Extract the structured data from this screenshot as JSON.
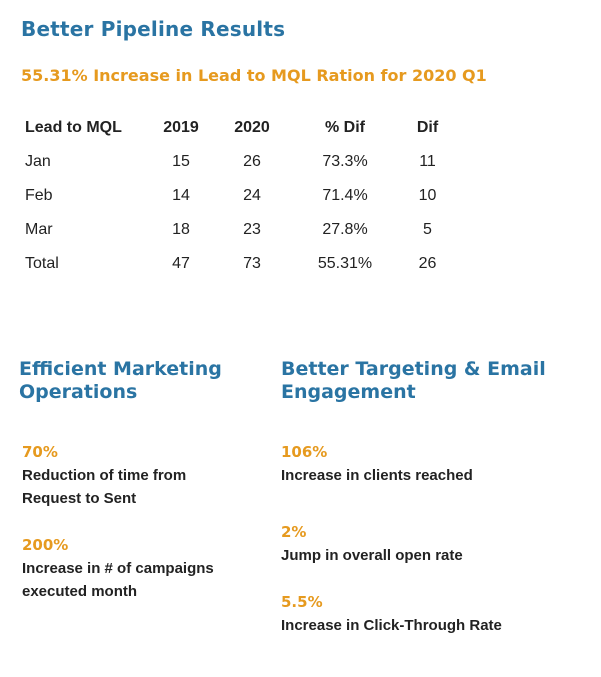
{
  "header": {
    "title": "Better Pipeline Results",
    "subtitle": "55.31% Increase in Lead to MQL Ration for 2020 Q1"
  },
  "table": {
    "headers": [
      "Lead to MQL",
      "2019",
      "2020",
      "% Dif",
      "Dif"
    ],
    "rows": [
      [
        "Jan",
        "15",
        "26",
        "73.3%",
        "11"
      ],
      [
        "Feb",
        "14",
        "24",
        "71.4%",
        "10"
      ],
      [
        "Mar",
        "18",
        "23",
        "27.8%",
        "5"
      ],
      [
        "Total",
        "47",
        "73",
        "55.31%",
        "26"
      ]
    ]
  },
  "left_section": {
    "title": "Efficient Marketing Operations",
    "stats": [
      {
        "value": "70%",
        "desc_line1": "Reduction of time from",
        "desc_line2": "Request to Sent"
      },
      {
        "value": "200%",
        "desc_line1": "Increase in # of campaigns",
        "desc_line2": "executed month"
      }
    ]
  },
  "right_section": {
    "title": "Better Targeting & Email Engagement",
    "stats": [
      {
        "value": "106%",
        "desc": "Increase in clients reached"
      },
      {
        "value": "2%",
        "desc": "Jump in overall open rate"
      },
      {
        "value": "5.5%",
        "desc": "Increase in Click-Through Rate"
      }
    ]
  },
  "colors": {
    "heading_blue": "#2a74a3",
    "accent_orange": "#e69a1f",
    "text": "#222222"
  }
}
